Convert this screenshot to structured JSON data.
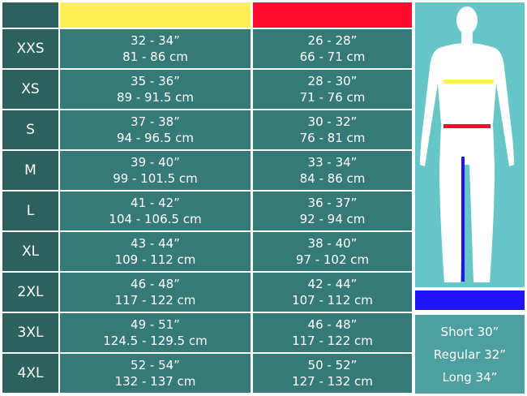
{
  "colors": {
    "chest": "#fdef55",
    "waist": "#fe0a2e",
    "inseam": "#2113fb"
  },
  "rows": [
    {
      "size": "XXS",
      "chest_in": "32 - 34”",
      "chest_cm": "81 - 86 cm",
      "waist_in": "26 - 28”",
      "waist_cm": "66 - 71 cm"
    },
    {
      "size": "XS",
      "chest_in": "35 - 36”",
      "chest_cm": "89 - 91.5 cm",
      "waist_in": "28 - 30”",
      "waist_cm": "71 - 76 cm"
    },
    {
      "size": "S",
      "chest_in": "37 - 38”",
      "chest_cm": "94 - 96.5 cm",
      "waist_in": "30 - 32”",
      "waist_cm": "76 - 81 cm"
    },
    {
      "size": "M",
      "chest_in": "39 - 40”",
      "chest_cm": "99 - 101.5 cm",
      "waist_in": "33 - 34”",
      "waist_cm": "84 - 86 cm"
    },
    {
      "size": "L",
      "chest_in": "41 - 42”",
      "chest_cm": "104 - 106.5 cm",
      "waist_in": "36 - 37”",
      "waist_cm": "92 - 94 cm"
    },
    {
      "size": "XL",
      "chest_in": "43 - 44”",
      "chest_cm": "109 - 112 cm",
      "waist_in": "38 - 40”",
      "waist_cm": "97 - 102 cm"
    },
    {
      "size": "2XL",
      "chest_in": "46 - 48”",
      "chest_cm": "117 - 122 cm",
      "waist_in": "42 - 44”",
      "waist_cm": "107 - 112 cm"
    },
    {
      "size": "3XL",
      "chest_in": "49 - 51”",
      "chest_cm": "124.5 - 129.5 cm",
      "waist_in": "46 - 48”",
      "waist_cm": "117 - 122 cm"
    },
    {
      "size": "4XL",
      "chest_in": "52 - 54”",
      "chest_cm": "132 - 137 cm",
      "waist_in": "50 - 52”",
      "waist_cm": "127 - 132 cm"
    }
  ],
  "lengths": [
    "Short 30”",
    "Regular 32”",
    "Long 34”"
  ]
}
